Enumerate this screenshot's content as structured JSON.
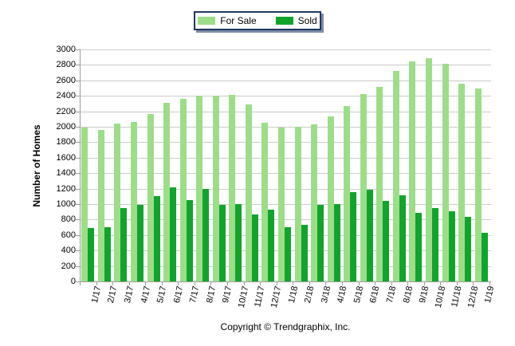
{
  "legend": {
    "items": [
      {
        "label": "For Sale",
        "color": "#9CDE87"
      },
      {
        "label": "Sold",
        "color": "#11A42C"
      }
    ]
  },
  "y_axis": {
    "title": "Number of Homes"
  },
  "footer": {
    "copyright": "Copyright © Trendgraphix, Inc."
  },
  "colors": {
    "for_sale": "#9CDE87",
    "sold": "#11A42C",
    "gridline": "#CBCBCB",
    "axis": "#9B9B9B",
    "legend_border": "#1F3864",
    "legend_shadow": "#7E8CA6",
    "text": "#000000"
  },
  "chart_data": {
    "type": "bar",
    "title": "",
    "xlabel": "",
    "ylabel": "Number of Homes",
    "ylim": [
      0,
      3000
    ],
    "ytick_step": 200,
    "grid": true,
    "legend_position": "top-center",
    "categories": [
      "1/17",
      "2/17",
      "3/17",
      "4/17",
      "5/17",
      "6/17",
      "7/17",
      "8/17",
      "9/17",
      "10/17",
      "11/17",
      "12/17",
      "1/18",
      "2/18",
      "3/18",
      "4/18",
      "5/18",
      "6/18",
      "7/18",
      "8/18",
      "9/18",
      "10/18",
      "11/18",
      "12/18",
      "1/19"
    ],
    "series": [
      {
        "name": "For Sale",
        "color": "#9CDE87",
        "values": [
          1990,
          1960,
          2040,
          2060,
          2170,
          2310,
          2360,
          2400,
          2400,
          2410,
          2290,
          2050,
          1990,
          2000,
          2030,
          2130,
          2270,
          2420,
          2520,
          2720,
          2850,
          2890,
          2810,
          2560,
          2490
        ]
      },
      {
        "name": "Sold",
        "color": "#11A42C",
        "values": [
          690,
          700,
          950,
          985,
          1100,
          1220,
          1050,
          1195,
          990,
          995,
          870,
          930,
          700,
          735,
          990,
          1000,
          1150,
          1185,
          1040,
          1110,
          890,
          945,
          910,
          830,
          630
        ]
      }
    ]
  }
}
